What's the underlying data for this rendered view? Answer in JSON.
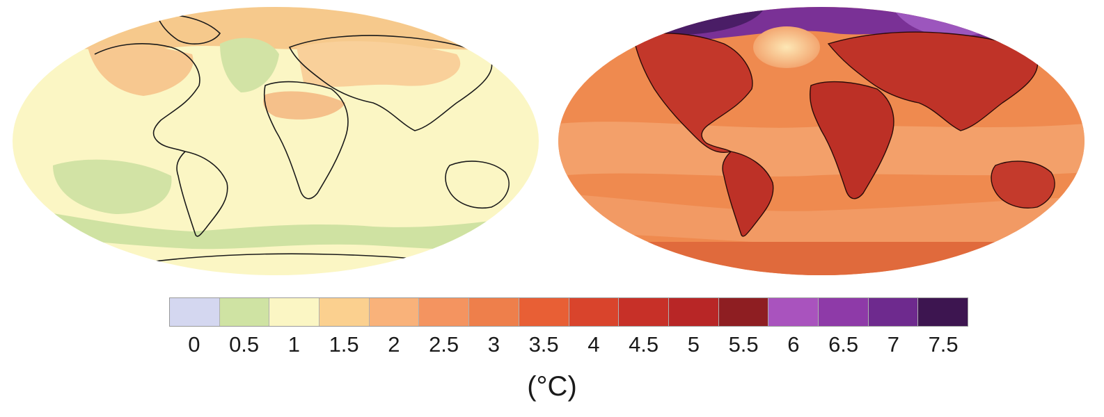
{
  "maps": [
    {
      "name": "warming-map-left",
      "land_color": "#fbf6c4",
      "ocean_color": "#fbf6c4"
    },
    {
      "name": "warming-map-right",
      "land_color": "#c73a2a",
      "ocean_color": "#ef8a4f"
    }
  ],
  "colorbar": {
    "swatches": [
      "#d4d7f0",
      "#cfe3a3",
      "#fbf6c4",
      "#fbd08f",
      "#f9b27a",
      "#f49460",
      "#ee7f4b",
      "#e85f35",
      "#d9442c",
      "#c73028",
      "#b82626",
      "#8e1e22",
      "#a953be",
      "#8e3aa8",
      "#6e2a8e",
      "#3d1550"
    ],
    "ticks": [
      "0",
      "0.5",
      "1",
      "1.5",
      "2",
      "2.5",
      "3",
      "3.5",
      "4",
      "4.5",
      "5",
      "5.5",
      "6",
      "6.5",
      "7",
      "7.5"
    ],
    "unit": "(°C)"
  }
}
